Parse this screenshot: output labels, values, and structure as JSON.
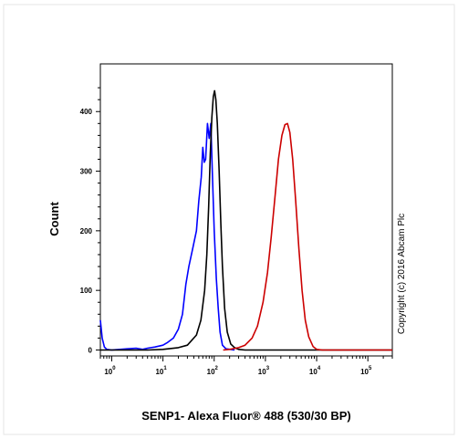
{
  "chart_data": {
    "type": "line",
    "title": "",
    "xlabel": "SENP1- Alexa Fluor® 488 (530/30 BP)",
    "ylabel": "Count",
    "x_scale": "log",
    "xlim": [
      0.6,
      300000
    ],
    "ylim": [
      -10,
      480
    ],
    "y_ticks": [
      0,
      100,
      200,
      300,
      400
    ],
    "y_tick_labels": [
      "0",
      "100",
      "200",
      "300",
      "400"
    ],
    "x_ticks": [
      1,
      10,
      100,
      1000,
      10000,
      100000
    ],
    "x_tick_labels": [
      {
        "base": "10",
        "exp": "0"
      },
      {
        "base": "10",
        "exp": "1"
      },
      {
        "base": "10",
        "exp": "2"
      },
      {
        "base": "10",
        "exp": "3"
      },
      {
        "base": "10",
        "exp": "4"
      },
      {
        "base": "10",
        "exp": "5"
      }
    ],
    "grid": false,
    "legend": "none",
    "annotation": "Copyright (c) 2016 Abcam Plc",
    "series": [
      {
        "color": "#0000ff",
        "points": [
          [
            0.6,
            50
          ],
          [
            0.65,
            20
          ],
          [
            0.72,
            5
          ],
          [
            0.8,
            1
          ],
          [
            1,
            0
          ],
          [
            2,
            2
          ],
          [
            3,
            3
          ],
          [
            4,
            1
          ],
          [
            5,
            3
          ],
          [
            7,
            5
          ],
          [
            10,
            8
          ],
          [
            12,
            12
          ],
          [
            16,
            20
          ],
          [
            20,
            35
          ],
          [
            24,
            60
          ],
          [
            28,
            110
          ],
          [
            32,
            140
          ],
          [
            38,
            170
          ],
          [
            45,
            200
          ],
          [
            50,
            250
          ],
          [
            56,
            290
          ],
          [
            60,
            340
          ],
          [
            64,
            315
          ],
          [
            68,
            320
          ],
          [
            74,
            380
          ],
          [
            80,
            355
          ],
          [
            86,
            380
          ],
          [
            92,
            300
          ],
          [
            100,
            200
          ],
          [
            110,
            120
          ],
          [
            120,
            70
          ],
          [
            130,
            30
          ],
          [
            145,
            8
          ],
          [
            170,
            2
          ],
          [
            250,
            0
          ]
        ]
      },
      {
        "color": "#000000",
        "points": [
          [
            0.6,
            0
          ],
          [
            5,
            0
          ],
          [
            10,
            1
          ],
          [
            20,
            4
          ],
          [
            30,
            8
          ],
          [
            45,
            25
          ],
          [
            55,
            50
          ],
          [
            65,
            100
          ],
          [
            72,
            160
          ],
          [
            78,
            240
          ],
          [
            84,
            330
          ],
          [
            90,
            390
          ],
          [
            96,
            425
          ],
          [
            102,
            435
          ],
          [
            108,
            420
          ],
          [
            115,
            380
          ],
          [
            125,
            300
          ],
          [
            135,
            210
          ],
          [
            145,
            140
          ],
          [
            160,
            70
          ],
          [
            180,
            30
          ],
          [
            210,
            10
          ],
          [
            250,
            4
          ],
          [
            300,
            1
          ],
          [
            400,
            0
          ],
          [
            300000,
            0
          ]
        ]
      },
      {
        "color": "#cc0000",
        "points": [
          [
            150,
            0
          ],
          [
            200,
            1
          ],
          [
            300,
            4
          ],
          [
            400,
            8
          ],
          [
            550,
            20
          ],
          [
            700,
            40
          ],
          [
            900,
            80
          ],
          [
            1100,
            130
          ],
          [
            1300,
            190
          ],
          [
            1550,
            260
          ],
          [
            1800,
            320
          ],
          [
            2100,
            360
          ],
          [
            2400,
            378
          ],
          [
            2700,
            380
          ],
          [
            3000,
            365
          ],
          [
            3400,
            320
          ],
          [
            3900,
            250
          ],
          [
            4500,
            170
          ],
          [
            5200,
            100
          ],
          [
            6000,
            50
          ],
          [
            7000,
            22
          ],
          [
            8500,
            6
          ],
          [
            10000,
            1
          ],
          [
            13000,
            0
          ],
          [
            300000,
            0
          ]
        ]
      }
    ]
  }
}
